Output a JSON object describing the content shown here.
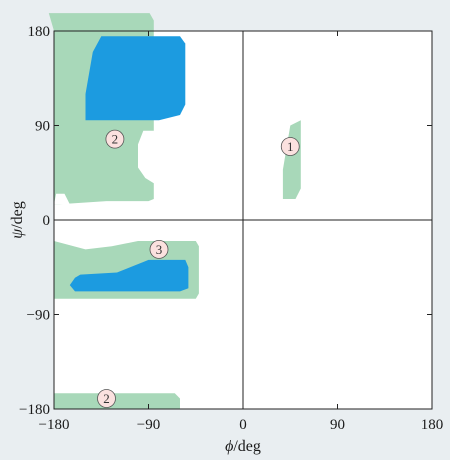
{
  "chart_data": {
    "type": "area",
    "title": "",
    "xlabel_symbol": "ϕ",
    "xlabel_unit": "/deg",
    "ylabel_symbol": "ψ",
    "ylabel_unit": "/deg",
    "xlim": [
      -180,
      180
    ],
    "ylim": [
      -180,
      180
    ],
    "x_ticks": [
      -180,
      -90,
      0,
      90,
      180
    ],
    "y_ticks": [
      -180,
      -90,
      0,
      90,
      180
    ],
    "x_tick_labels": [
      "−180",
      "−90",
      "0",
      "90",
      "180"
    ],
    "y_tick_labels": [
      "−180",
      "−90",
      "0",
      "90",
      "180"
    ],
    "grid": false,
    "crosshair_at_zero": true,
    "colors": {
      "background": "#e9eef1",
      "plot_area": "#ffffff",
      "allowed_region": "#a8d8b9",
      "favoured_region": "#1c9be0",
      "label_fill": "#fbe1df",
      "axis": "#222222"
    },
    "regions": [
      {
        "kind": "allowed",
        "polygon": [
          [
            -180,
            180
          ],
          [
            -185,
            197
          ],
          [
            -89,
            197
          ],
          [
            -85,
            190
          ],
          [
            -85,
            85
          ],
          [
            -95,
            85
          ],
          [
            -100,
            72
          ],
          [
            -100,
            50
          ],
          [
            -93,
            40
          ],
          [
            -85,
            35
          ],
          [
            -85,
            20
          ],
          [
            -90,
            18
          ],
          [
            -130,
            18
          ],
          [
            -175,
            15
          ],
          [
            -180,
            15
          ]
        ]
      },
      {
        "kind": "allowed",
        "polygon": [
          [
            -180,
            -20
          ],
          [
            -175,
            -20
          ],
          [
            -45,
            -20
          ],
          [
            -42,
            -25
          ],
          [
            -42,
            -70
          ],
          [
            -45,
            -75
          ],
          [
            -180,
            -75
          ]
        ]
      },
      {
        "kind": "allowed",
        "polygon": [
          [
            -180,
            -165
          ],
          [
            -65,
            -165
          ],
          [
            -60,
            -170
          ],
          [
            -60,
            -180
          ],
          [
            -180,
            -180
          ]
        ]
      },
      {
        "kind": "allowed",
        "polygon": [
          [
            38,
            48
          ],
          [
            45,
            90
          ],
          [
            55,
            95
          ],
          [
            55,
            30
          ],
          [
            50,
            20
          ],
          [
            38,
            20
          ]
        ]
      },
      {
        "kind": "favoured",
        "polygon": [
          [
            -150,
            120
          ],
          [
            -143,
            160
          ],
          [
            -135,
            175
          ],
          [
            -60,
            175
          ],
          [
            -55,
            168
          ],
          [
            -55,
            110
          ],
          [
            -60,
            100
          ],
          [
            -80,
            95
          ],
          [
            -135,
            95
          ],
          [
            -150,
            95
          ]
        ]
      },
      {
        "kind": "favoured",
        "polygon": [
          [
            -160,
            -55
          ],
          [
            -155,
            -52
          ],
          [
            -120,
            -50
          ],
          [
            -95,
            -40
          ],
          [
            -90,
            -38
          ],
          [
            -55,
            -38
          ],
          [
            -52,
            -45
          ],
          [
            -52,
            -65
          ],
          [
            -60,
            -68
          ],
          [
            -160,
            -68
          ],
          [
            -165,
            -62
          ]
        ]
      },
      {
        "kind": "white_cutout",
        "polygon": [
          [
            -180,
            -20
          ],
          [
            -150,
            -28
          ],
          [
            -125,
            -25
          ],
          [
            -100,
            -20
          ],
          [
            -180,
            -20
          ]
        ]
      },
      {
        "kind": "white_cutout",
        "polygon": [
          [
            -180,
            15
          ],
          [
            -178,
            25
          ],
          [
            -170,
            25
          ],
          [
            -165,
            15
          ]
        ]
      }
    ],
    "region_labels": [
      {
        "text": "1",
        "x": 45,
        "y": 70
      },
      {
        "text": "2",
        "x": -122,
        "y": 77
      },
      {
        "text": "3",
        "x": -80,
        "y": -28
      },
      {
        "text": "2",
        "x": -130,
        "y": -170
      }
    ]
  }
}
